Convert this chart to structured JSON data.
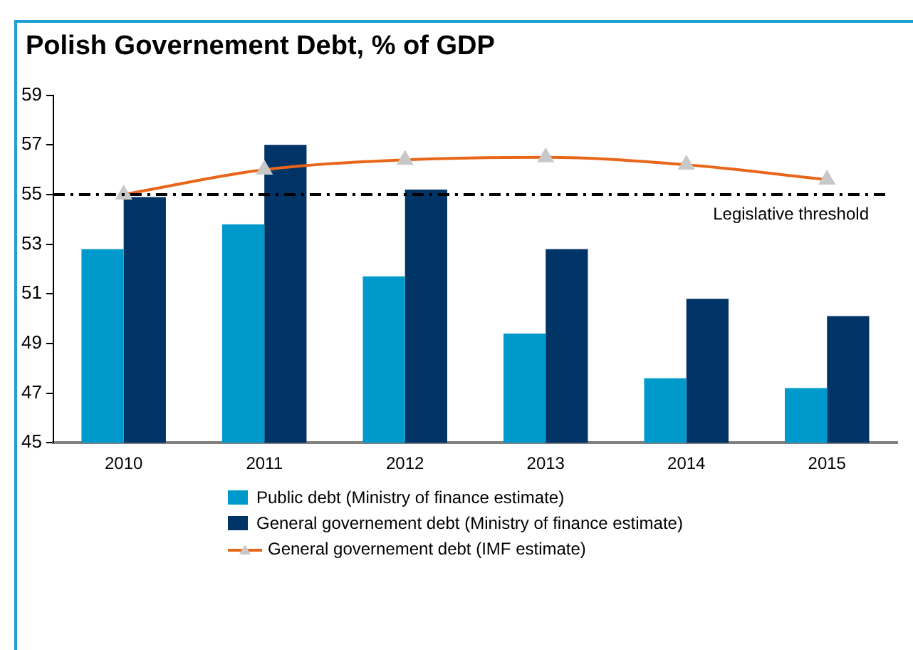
{
  "chart_data": {
    "type": "bar",
    "title": "Polish Governement Debt, % of GDP",
    "categories": [
      "2010",
      "2011",
      "2012",
      "2013",
      "2014",
      "2015"
    ],
    "series": [
      {
        "name": "Public debt (Ministry of finance estimate)",
        "color": "#0099cc",
        "values": [
          52.8,
          53.8,
          51.7,
          49.4,
          47.6,
          47.2
        ]
      },
      {
        "name": "General governement debt (Ministry of finance estimate)",
        "color": "#003366",
        "values": [
          54.9,
          57.0,
          55.2,
          52.8,
          50.8,
          50.1
        ]
      },
      {
        "name": "General governement debt (IMF estimate)",
        "type": "line",
        "color": "#e8661a",
        "marker": "triangle",
        "values": [
          55.0,
          56.0,
          56.4,
          56.5,
          56.2,
          55.6
        ]
      }
    ],
    "ylim": [
      45,
      59
    ],
    "yticks": [
      45,
      47,
      49,
      51,
      53,
      55,
      57,
      59
    ],
    "grid": false,
    "legend": "bottom",
    "ref_lines": [
      {
        "axis": "y",
        "value": 55,
        "label": "Legislative threshold",
        "color": "#000000",
        "line_style": "dashdot"
      }
    ]
  }
}
